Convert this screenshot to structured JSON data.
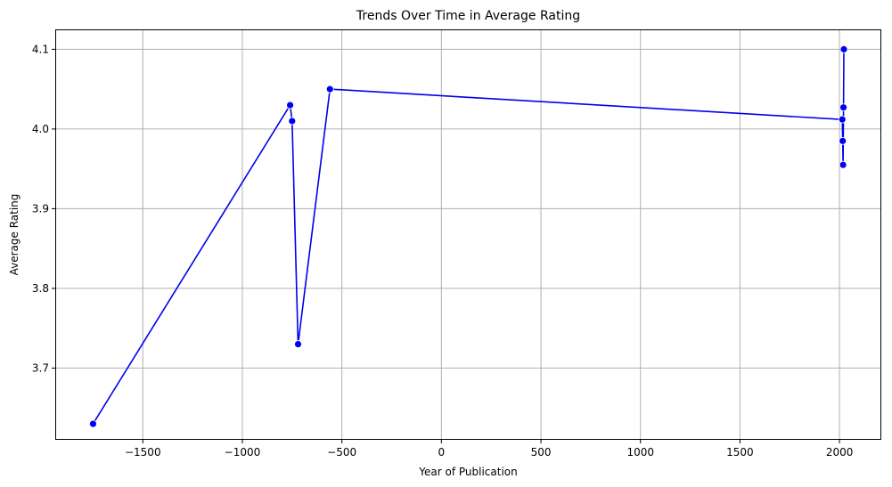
{
  "chart_data": {
    "type": "line",
    "title": "Trends Over Time in Average Rating",
    "xlabel": "Year of Publication",
    "ylabel": "Average Rating",
    "xlim": [
      -1940,
      2210
    ],
    "ylim": [
      3.61,
      4.125
    ],
    "x_ticks": [
      -1500,
      -1000,
      -500,
      0,
      500,
      1000,
      1500,
      2000
    ],
    "x_tick_labels": [
      "−1500",
      "−1000",
      "−500",
      "0",
      "500",
      "1000",
      "1500",
      "2000"
    ],
    "y_ticks": [
      3.7,
      3.8,
      3.9,
      4.0,
      4.1
    ],
    "y_tick_labels": [
      "3.7",
      "3.8",
      "3.9",
      "4.0",
      "4.1"
    ],
    "grid": true,
    "series": [
      {
        "color": "#0000ee",
        "marker": "circle",
        "points": [
          {
            "x": -1750,
            "y": 3.63
          },
          {
            "x": -760,
            "y": 4.03
          },
          {
            "x": -750,
            "y": 4.01
          },
          {
            "x": -720,
            "y": 3.73
          },
          {
            "x": -560,
            "y": 4.05
          },
          {
            "x": 2014,
            "y": 4.012
          },
          {
            "x": 2016,
            "y": 3.985
          },
          {
            "x": 2018,
            "y": 3.955
          },
          {
            "x": 2020,
            "y": 4.027
          },
          {
            "x": 2022,
            "y": 4.1
          }
        ]
      }
    ]
  }
}
